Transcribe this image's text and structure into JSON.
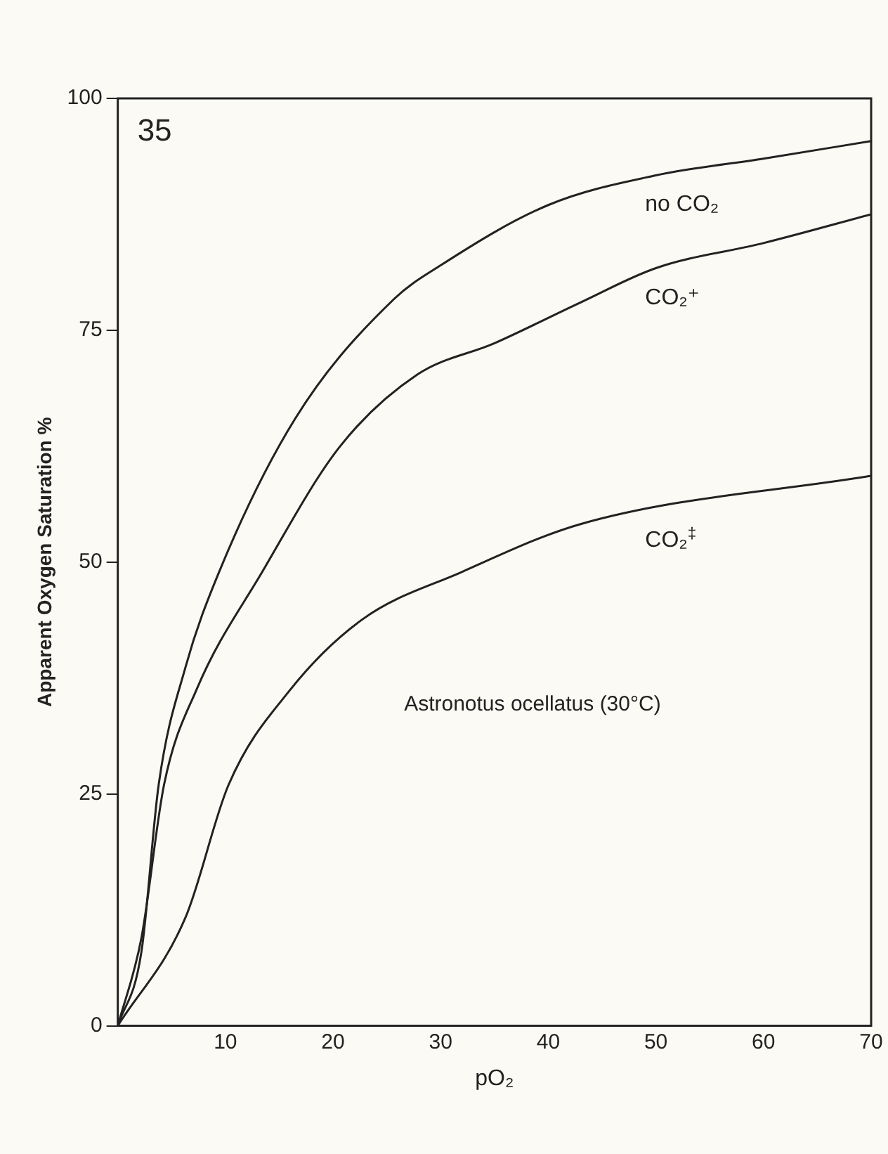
{
  "chart_data": {
    "type": "line",
    "xlabel": "pO₂",
    "ylabel": "Apparent Oxygen Saturation %",
    "xlim": [
      0,
      70
    ],
    "xticks": [
      10,
      20,
      30,
      40,
      50,
      60,
      70
    ],
    "ylim": [
      0,
      100
    ],
    "yticks": [
      0,
      25,
      50,
      75,
      100
    ],
    "grid": false,
    "legend": false,
    "marker": "none",
    "line_style": "solid",
    "annotations": [
      "35",
      "Astronotus ocellatus (30°C)"
    ],
    "series": [
      {
        "name": "no CO₂",
        "color": "#222222",
        "x": [
          0,
          2.2,
          3.8,
          6.3,
          9.4,
          16.5,
          25.7,
          30,
          40,
          50,
          60,
          70
        ],
        "values": [
          0,
          8,
          26,
          38.7,
          48.9,
          65.5,
          78.4,
          82,
          88.5,
          91.7,
          93.5,
          95.4
        ]
      },
      {
        "name": "CO₂⁺",
        "color": "#222222",
        "x": [
          0,
          2.2,
          4.3,
          7.3,
          13.4,
          20.6,
          27.8,
          35,
          43,
          50,
          60,
          70
        ],
        "values": [
          0,
          9.5,
          26,
          36.2,
          48.9,
          62.4,
          70.2,
          73.6,
          78,
          81.7,
          84.4,
          87.5
        ]
      },
      {
        "name": "CO₂$^{‡}$",
        "color": "#222222",
        "x": [
          0,
          6.3,
          10.3,
          16,
          22.7,
          31.9,
          43,
          70
        ],
        "values": [
          0,
          11.7,
          26,
          36.2,
          43.8,
          48.9,
          54.1,
          59.3
        ]
      }
    ]
  }
}
